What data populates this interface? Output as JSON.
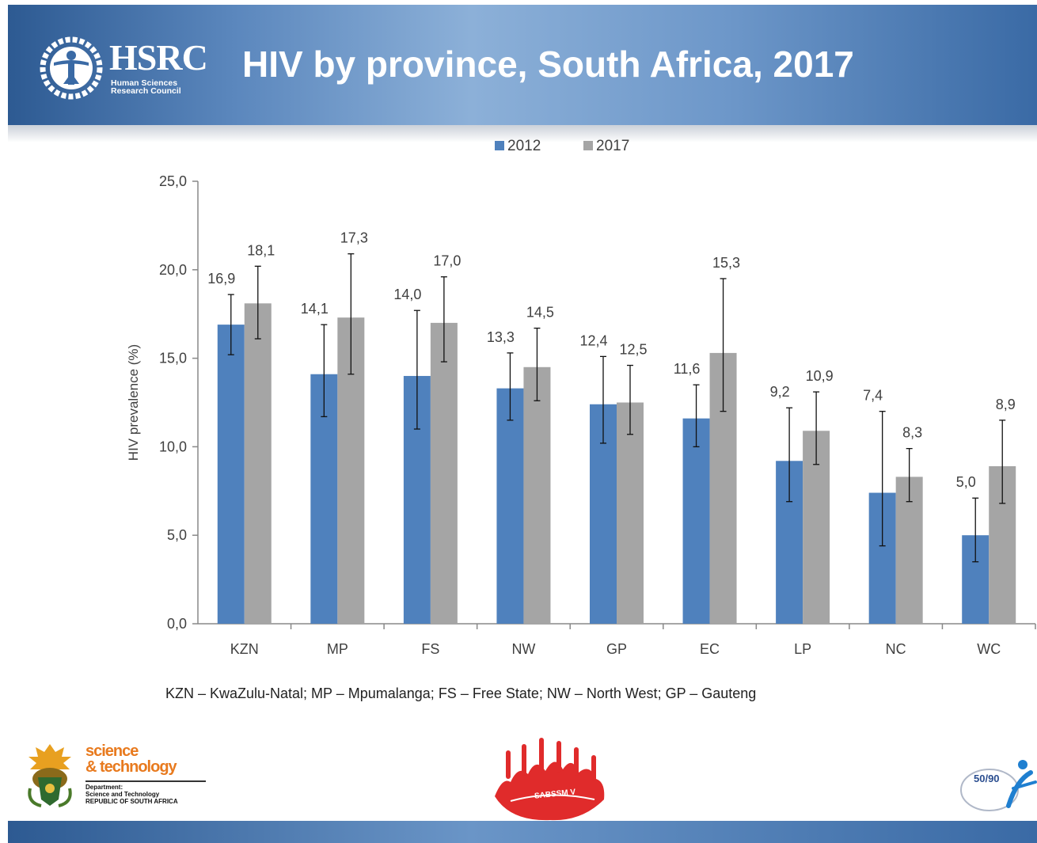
{
  "header": {
    "title": "HIV by province, South Africa, 2017",
    "logo_name": "HSRC",
    "logo_sub": [
      "Human Sciences",
      "Research Council"
    ],
    "logo_icon": "hsrc-figure-globe-icon"
  },
  "chart_data": {
    "type": "bar",
    "categories": [
      "KZN",
      "MP",
      "FS",
      "NW",
      "GP",
      "EC",
      "LP",
      "NC",
      "WC"
    ],
    "series": [
      {
        "name": "2012",
        "color": "#4f81bd",
        "values": [
          16.9,
          14.1,
          14.0,
          13.3,
          12.4,
          11.6,
          9.2,
          7.4,
          5.0
        ],
        "labels": [
          "16,9",
          "14,1",
          "14,0",
          "13,3",
          "12,4",
          "11,6",
          "9,2",
          "7,4",
          "5,0"
        ],
        "ci_low": [
          15.2,
          11.7,
          11.0,
          11.5,
          10.2,
          10.0,
          6.9,
          4.4,
          3.5
        ],
        "ci_high": [
          18.6,
          16.9,
          17.7,
          15.3,
          15.1,
          13.5,
          12.2,
          12.0,
          7.1
        ]
      },
      {
        "name": "2017",
        "color": "#a5a5a5",
        "values": [
          18.1,
          17.3,
          17.0,
          14.5,
          12.5,
          15.3,
          10.9,
          8.3,
          8.9
        ],
        "labels": [
          "18,1",
          "17,3",
          "17,0",
          "14,5",
          "12,5",
          "15,3",
          "10,9",
          "8,3",
          "8,9"
        ],
        "ci_low": [
          16.1,
          14.1,
          14.8,
          12.6,
          10.7,
          12.0,
          9.0,
          6.9,
          6.8
        ],
        "ci_high": [
          20.2,
          20.9,
          19.6,
          16.7,
          14.6,
          19.5,
          13.1,
          9.9,
          11.5
        ]
      }
    ],
    "ylabel": "HIV prevalence (%)",
    "xlabel": "",
    "ylim": [
      0,
      25
    ],
    "yticks": [
      0,
      5,
      10,
      15,
      20,
      25
    ],
    "ytick_labels": [
      "0,0",
      "5,0",
      "10,0",
      "15,0",
      "20,0",
      "25,0"
    ],
    "grid": false,
    "error_bars": true,
    "legend_position": "top-center"
  },
  "footnote": "KZN – KwaZulu-Natal; MP – Mpumalanga; FS – Free State; NW – North West; GP – Gauteng",
  "footer_logos": {
    "dst_line1": "science",
    "dst_line2": "& technology",
    "dst_small": [
      "Department:",
      "Science and Technology",
      "REPUBLIC OF SOUTH AFRICA"
    ],
    "dst_icon": "coat-of-arms-icon",
    "sabssm": "SABSSM V",
    "sabssm_icon": "raised-hands-icon",
    "fifty90": "50/90",
    "fifty90_icon": "running-figure-icon"
  }
}
